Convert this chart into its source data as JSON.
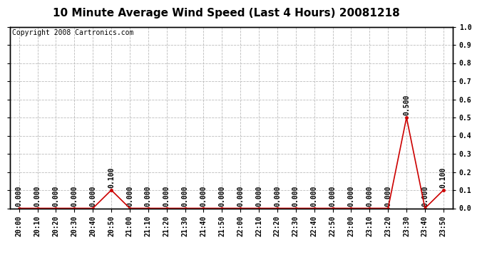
{
  "title": "10 Minute Average Wind Speed (Last 4 Hours) 20081218",
  "copyright": "Copyright 2008 Cartronics.com",
  "x_labels": [
    "20:00",
    "20:10",
    "20:20",
    "20:30",
    "20:40",
    "20:50",
    "21:00",
    "21:10",
    "21:20",
    "21:30",
    "21:40",
    "21:50",
    "22:00",
    "22:10",
    "22:20",
    "22:30",
    "22:40",
    "22:50",
    "23:00",
    "23:10",
    "23:20",
    "23:30",
    "23:40",
    "23:50"
  ],
  "y_values": [
    0.0,
    0.0,
    0.0,
    0.0,
    0.0,
    0.1,
    0.0,
    0.0,
    0.0,
    0.0,
    0.0,
    0.0,
    0.0,
    0.0,
    0.0,
    0.0,
    0.0,
    0.0,
    0.0,
    0.0,
    0.0,
    0.5,
    0.0,
    0.1
  ],
  "line_color": "#cc0000",
  "background_color": "#ffffff",
  "grid_color": "#bbbbbb",
  "border_color": "#000000",
  "ylim": [
    0.0,
    1.0
  ],
  "yticks": [
    0.0,
    0.1,
    0.2,
    0.3,
    0.4,
    0.5,
    0.6,
    0.7,
    0.8,
    0.9,
    1.0
  ],
  "title_fontsize": 11,
  "copyright_fontsize": 7,
  "tick_fontsize": 7,
  "annotation_fontsize": 7
}
